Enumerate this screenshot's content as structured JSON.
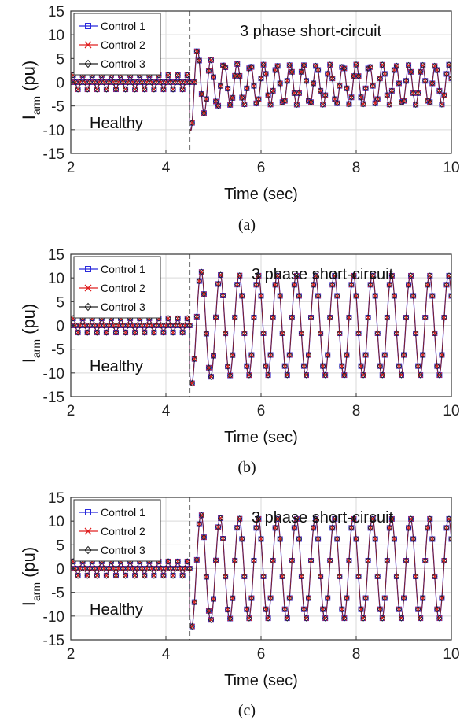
{
  "chart_data": [
    {
      "type": "line",
      "caption": "(a)",
      "xlabel": "Time (sec)",
      "ylabel_main": "I",
      "ylabel_sub": "arm",
      "ylabel_unit": "(pu)",
      "xlim": [
        2,
        10
      ],
      "ylim": [
        -15,
        15
      ],
      "xticks": [
        2,
        4,
        6,
        8,
        10
      ],
      "yticks": [
        -15,
        -10,
        -5,
        0,
        5,
        10,
        15
      ],
      "grid": true,
      "legend_position": "top-left",
      "fault_time": 4.5,
      "annotations": [
        "Healthy",
        "3 phase short-circuit"
      ],
      "series": [
        {
          "name": "Control 1",
          "color": "#2a2adc",
          "marker": "square"
        },
        {
          "name": "Control 2",
          "color": "#e02020",
          "marker": "x"
        },
        {
          "name": "Control 3",
          "color": "#222222",
          "marker": "diamond"
        }
      ],
      "waveform": {
        "pre_fault": {
          "frequency_hz": 5,
          "offset": 0,
          "amplitude": 1.5
        },
        "post_fault": {
          "frequency_hz": 3.6,
          "offset": -0.5,
          "steady_amplitude": 4.3,
          "first_trough": -10.5
        }
      }
    },
    {
      "type": "line",
      "caption": "(b)",
      "xlabel": "Time (sec)",
      "ylabel_main": "I",
      "ylabel_sub": "arm",
      "ylabel_unit": "(pu)",
      "xlim": [
        2,
        10
      ],
      "ylim": [
        -15,
        15
      ],
      "xticks": [
        2,
        4,
        6,
        8,
        10
      ],
      "yticks": [
        -15,
        -10,
        -5,
        0,
        5,
        10,
        15
      ],
      "grid": true,
      "legend_position": "top-left",
      "fault_time": 4.5,
      "annotations": [
        "Healthy",
        "3 phase short-circuit"
      ],
      "series": [
        {
          "name": "Control 1",
          "color": "#2a2adc",
          "marker": "square"
        },
        {
          "name": "Control 2",
          "color": "#e02020",
          "marker": "x"
        },
        {
          "name": "Control 3",
          "color": "#222222",
          "marker": "diamond"
        }
      ],
      "waveform": {
        "pre_fault": {
          "frequency_hz": 5,
          "offset": 0,
          "amplitude": 1.5
        },
        "post_fault": {
          "frequency_hz": 2.5,
          "offset": 0,
          "steady_amplitude": 10.8,
          "first_trough": -13.0
        }
      }
    },
    {
      "type": "line",
      "caption": "(c)",
      "xlabel": "Time (sec)",
      "ylabel_main": "I",
      "ylabel_sub": "arm",
      "ylabel_unit": "(pu)",
      "xlim": [
        2,
        10
      ],
      "ylim": [
        -15,
        15
      ],
      "xticks": [
        2,
        4,
        6,
        8,
        10
      ],
      "yticks": [
        -15,
        -10,
        -5,
        0,
        5,
        10,
        15
      ],
      "grid": true,
      "legend_position": "top-left",
      "fault_time": 4.5,
      "annotations": [
        "Healthy",
        "3 phase short-circuit"
      ],
      "series": [
        {
          "name": "Control 1",
          "color": "#2a2adc",
          "marker": "square"
        },
        {
          "name": "Control 2",
          "color": "#e02020",
          "marker": "x"
        },
        {
          "name": "Control 3",
          "color": "#222222",
          "marker": "diamond"
        }
      ],
      "waveform": {
        "pre_fault": {
          "frequency_hz": 5,
          "offset": 0,
          "amplitude": 1.5
        },
        "post_fault": {
          "frequency_hz": 2.5,
          "offset": 0,
          "steady_amplitude": 10.8,
          "first_trough": -13.0
        }
      }
    }
  ]
}
